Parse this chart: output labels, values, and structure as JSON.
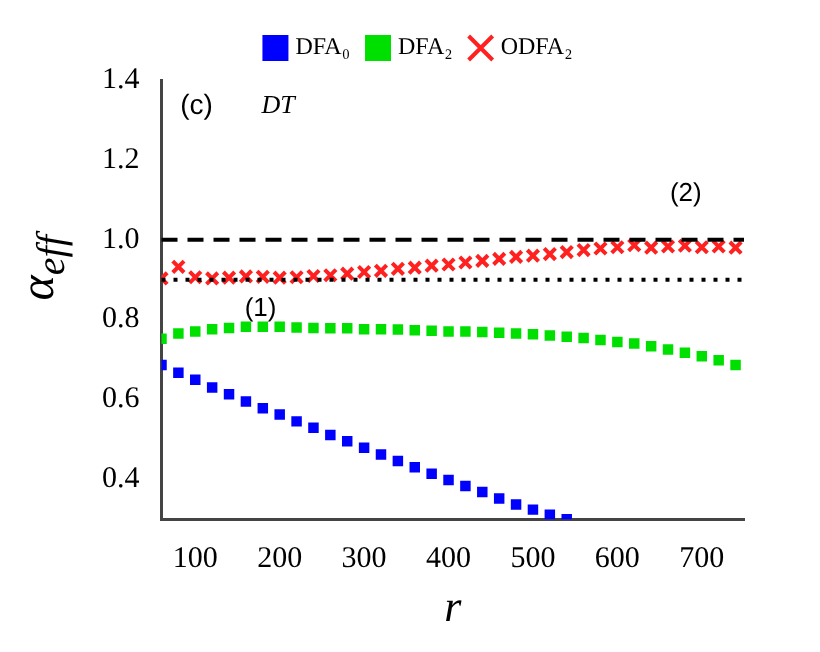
{
  "chart_data": {
    "type": "scatter",
    "xlabel": "r",
    "ylabel": "α$_{eff}$",
    "x": [
      60,
      80,
      100,
      120,
      140,
      160,
      180,
      200,
      220,
      240,
      260,
      280,
      300,
      320,
      340,
      360,
      380,
      400,
      420,
      440,
      460,
      480,
      500,
      520,
      540,
      560,
      580,
      600,
      620,
      640,
      660,
      680,
      700,
      720,
      740
    ],
    "series": [
      {
        "name": "DFA₀",
        "color": "#0000ff",
        "marker": "square",
        "values": [
          0.686,
          0.667,
          0.649,
          0.63,
          0.613,
          0.595,
          0.578,
          0.562,
          0.545,
          0.529,
          0.511,
          0.495,
          0.479,
          0.462,
          0.446,
          0.43,
          0.414,
          0.398,
          0.383,
          0.368,
          0.352,
          0.337,
          0.324,
          0.311,
          0.3,
          null,
          null,
          null,
          null,
          null,
          null,
          null,
          null,
          null,
          null
        ]
      },
      {
        "name": "DFA₂",
        "color": "#00e000",
        "marker": "square",
        "values": [
          0.752,
          0.765,
          0.77,
          0.776,
          0.779,
          0.782,
          0.782,
          0.782,
          0.78,
          0.779,
          0.778,
          0.778,
          0.776,
          0.776,
          0.775,
          0.773,
          0.772,
          0.77,
          0.77,
          0.769,
          0.767,
          0.765,
          0.763,
          0.76,
          0.757,
          0.754,
          0.749,
          0.744,
          0.74,
          0.733,
          0.725,
          0.717,
          0.708,
          0.698,
          0.686
        ]
      },
      {
        "name": "ODFA₂",
        "color": "#ff2020",
        "marker": "cross",
        "values": [
          0.903,
          0.932,
          0.906,
          0.903,
          0.905,
          0.908,
          0.907,
          0.905,
          0.906,
          0.909,
          0.911,
          0.915,
          0.919,
          0.922,
          0.927,
          0.93,
          0.935,
          0.938,
          0.943,
          0.947,
          0.952,
          0.957,
          0.96,
          0.964,
          0.969,
          0.974,
          0.978,
          0.981,
          0.986,
          0.98,
          0.983,
          0.985,
          0.981,
          0.983,
          0.98
        ]
      }
    ],
    "xlim": [
      60,
      750
    ],
    "xticks": [
      100,
      200,
      300,
      400,
      500,
      600,
      700
    ],
    "ylim": [
      0.3,
      1.4
    ],
    "yticks": [
      {
        "value": 0.4,
        "label": "0.4"
      },
      {
        "value": 0.6,
        "label": "0.6"
      },
      {
        "value": 0.8,
        "label": "0.8"
      },
      {
        "value": 1.0,
        "label": "1.0"
      },
      {
        "value": 1.2,
        "label": "1.2"
      },
      {
        "value": 1.4,
        "label": "1.4"
      }
    ],
    "ref_lines": [
      {
        "axis": "y",
        "value": 1.0,
        "line_style": "dashed",
        "color": "#000000"
      },
      {
        "axis": "y",
        "value": 0.9,
        "line_style": "dotted",
        "color": "#000000"
      }
    ],
    "annotations": [
      "(c)",
      "DT",
      "(1)",
      "(2)"
    ],
    "legend": "top",
    "grid": false
  }
}
